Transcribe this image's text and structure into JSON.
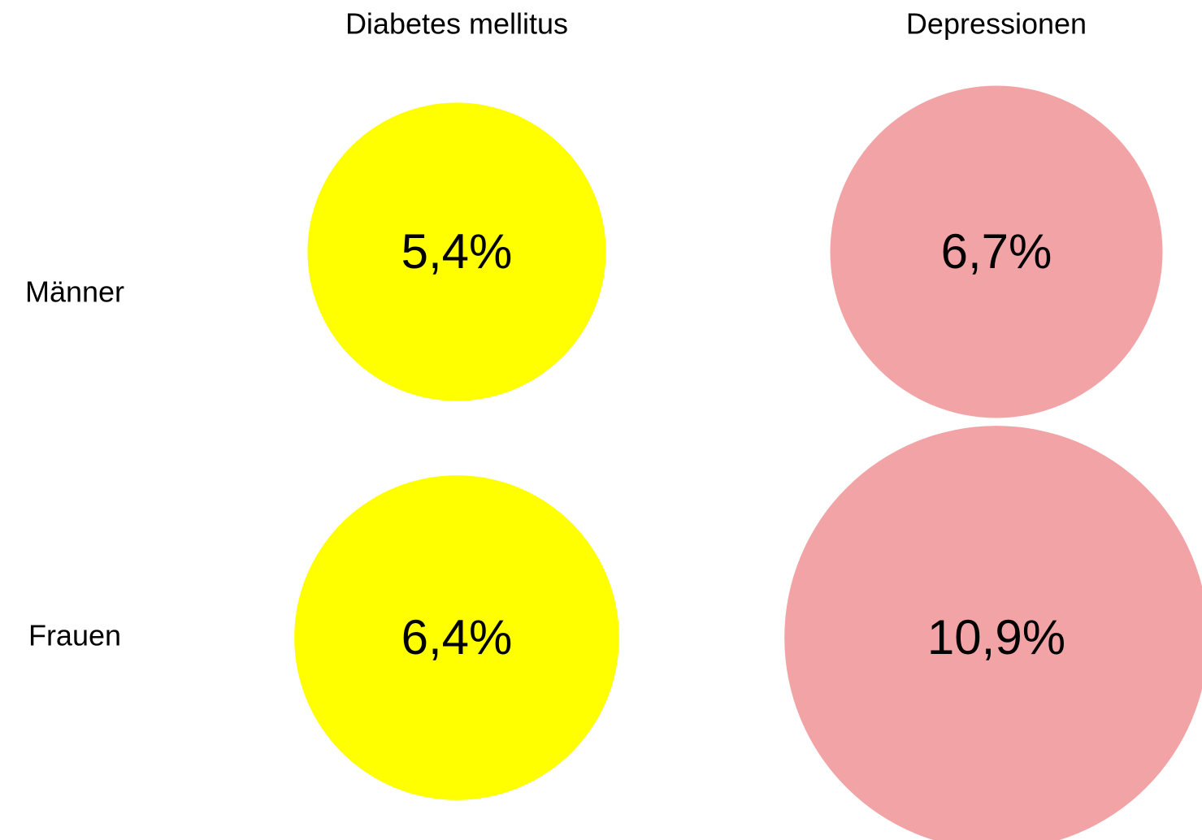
{
  "chart_data": {
    "type": "bubble",
    "categories": [
      "Männer",
      "Frauen"
    ],
    "series": [
      {
        "name": "Diabetes mellitus",
        "color": "#ffff00",
        "values": [
          5.4,
          6.4
        ],
        "value_labels": [
          "5,4%",
          "6,4%"
        ]
      },
      {
        "name": "Depressionen",
        "color": "#f2a3a6",
        "values": [
          6.7,
          10.9
        ],
        "value_labels": [
          "6,7%",
          "10,9%"
        ]
      }
    ]
  }
}
